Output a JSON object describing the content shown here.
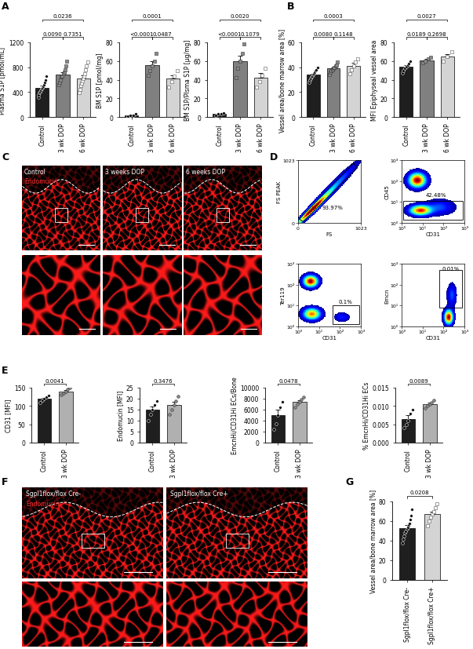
{
  "panel_labels": [
    "A",
    "B",
    "C",
    "D",
    "E",
    "F",
    "G"
  ],
  "chart_data": [
    {
      "type": "bar",
      "ylabel": "Plasma S1P [pmol/mL]",
      "categories": [
        "Control",
        "3 wk DOP",
        "6 wk DOP"
      ],
      "values": [
        470,
        680,
        620
      ],
      "errors": [
        30,
        40,
        50
      ],
      "points": [
        [
          310,
          360,
          390,
          410,
          430,
          450,
          470,
          490,
          520,
          560,
          600,
          660
        ],
        [
          520,
          560,
          600,
          640,
          660,
          700,
          720,
          760,
          820,
          900
        ],
        [
          390,
          440,
          500,
          540,
          580,
          620,
          660,
          700,
          760,
          820,
          880
        ]
      ],
      "colors": [
        "#1f1f1f",
        "#808080",
        "#d4d4d4"
      ],
      "markers": [
        "circle",
        "square",
        "open_square"
      ],
      "ylim": [
        0,
        1200
      ],
      "yticks": [
        0,
        400,
        800,
        1200
      ],
      "annotations": [
        {
          "between": [
            0,
            2
          ],
          "text": "0.0236"
        },
        {
          "between": [
            0,
            1
          ],
          "text": "0.0090"
        },
        {
          "between": [
            1,
            2
          ],
          "text": "0.7351"
        }
      ]
    },
    {
      "type": "bar",
      "ylabel": "BM S1P [pmol/mg]",
      "categories": [
        "Control",
        "3 wk DOP",
        "6 wk DOP"
      ],
      "values": [
        2,
        56,
        41
      ],
      "errors": [
        0.3,
        4,
        4
      ],
      "points": [
        [
          1,
          2,
          2,
          3
        ],
        [
          45,
          50,
          55,
          60,
          68
        ],
        [
          32,
          38,
          44,
          50
        ]
      ],
      "colors": [
        "#1f1f1f",
        "#808080",
        "#d4d4d4"
      ],
      "markers": [
        "circle",
        "square",
        "open_square"
      ],
      "ylim": [
        0,
        80
      ],
      "yticks": [
        0,
        20,
        40,
        60,
        80
      ],
      "annotations": [
        {
          "between": [
            0,
            2
          ],
          "text": "0.0001"
        },
        {
          "between": [
            0,
            1
          ],
          "text": "<0.0001"
        },
        {
          "between": [
            1,
            2
          ],
          "text": "0.0487"
        }
      ]
    },
    {
      "type": "bar",
      "ylabel": "BM S1P/Plsma S1P [µg/mg]",
      "categories": [
        "Control",
        "3 wk DOP",
        "6 wk DOP"
      ],
      "values": [
        3,
        60,
        42
      ],
      "errors": [
        0.4,
        6,
        5
      ],
      "points": [
        [
          2,
          3,
          3,
          4
        ],
        [
          42,
          52,
          60,
          68,
          78
        ],
        [
          32,
          38,
          45,
          52
        ]
      ],
      "colors": [
        "#1f1f1f",
        "#808080",
        "#d4d4d4"
      ],
      "markers": [
        "circle",
        "square",
        "open_square"
      ],
      "ylim": [
        0,
        80
      ],
      "yticks": [
        0,
        20,
        40,
        60,
        80
      ],
      "annotations": [
        {
          "between": [
            0,
            2
          ],
          "text": "0.0020"
        },
        {
          "between": [
            0,
            1
          ],
          "text": "<0.0001"
        },
        {
          "between": [
            1,
            2
          ],
          "text": "0.1079"
        }
      ]
    },
    {
      "type": "bar",
      "ylabel": "Vessel area/bone marrow area [%]",
      "categories": [
        "Control",
        "3 wk DOP",
        "6 wk DOP"
      ],
      "values": [
        34,
        39,
        41
      ],
      "errors": [
        1,
        1,
        2.5
      ],
      "points": [
        [
          28,
          30,
          31,
          32,
          33,
          34,
          35,
          36,
          37,
          38,
          40
        ],
        [
          34,
          36,
          37,
          38,
          39,
          40,
          41,
          42,
          44
        ],
        [
          35,
          38,
          41,
          44,
          47
        ]
      ],
      "colors": [
        "#1f1f1f",
        "#808080",
        "#d4d4d4"
      ],
      "markers": [
        "circle",
        "square",
        "open_square"
      ],
      "ylim": [
        0,
        60
      ],
      "yticks": [
        0,
        20,
        40,
        60
      ],
      "annotations": [
        {
          "between": [
            0,
            2
          ],
          "text": "0.0003"
        },
        {
          "between": [
            0,
            1
          ],
          "text": "0.0080"
        },
        {
          "between": [
            1,
            2
          ],
          "text": "0.1148"
        }
      ]
    },
    {
      "type": "bar",
      "ylabel": "MFI Epiphyseal vessel area",
      "categories": [
        "Control",
        "3 wk DOP",
        "6 wk DOP"
      ],
      "values": [
        54,
        61,
        65
      ],
      "errors": [
        1.8,
        1.5,
        2.5
      ],
      "points": [
        [
          47,
          50,
          52,
          54,
          56,
          57,
          60
        ],
        [
          58,
          60,
          62,
          64
        ],
        [
          60,
          65,
          70
        ]
      ],
      "colors": [
        "#1f1f1f",
        "#808080",
        "#d4d4d4"
      ],
      "markers": [
        "circle",
        "square",
        "open_square"
      ],
      "ylim": [
        0,
        80
      ],
      "yticks": [
        0,
        20,
        40,
        60,
        80
      ],
      "annotations": [
        {
          "between": [
            0,
            2
          ],
          "text": "0.0027"
        },
        {
          "between": [
            0,
            1
          ],
          "text": "0.0189"
        },
        {
          "between": [
            1,
            2
          ],
          "text": "0.2698"
        }
      ]
    },
    {
      "type": "bar",
      "ylabel": "CD31 [MFI]",
      "categories": [
        "Control",
        "3 wk DOP"
      ],
      "values": [
        120,
        140
      ],
      "errors": [
        3,
        3.5
      ],
      "points": [
        [
          110,
          115,
          120,
          124,
          128
        ],
        [
          130,
          135,
          140,
          145,
          150
        ]
      ],
      "colors": [
        "#1f1f1f",
        "#b0b0b0"
      ],
      "markers": [
        "circle",
        "circle"
      ],
      "ylim": [
        0,
        150
      ],
      "yticks": [
        0,
        50,
        100,
        150
      ],
      "annotations": [
        {
          "between": [
            0,
            1
          ],
          "text": "0.0041"
        }
      ]
    },
    {
      "type": "bar",
      "ylabel": "Endomucin [MFI]",
      "categories": [
        "Control",
        "3 wk DOP"
      ],
      "values": [
        15,
        17
      ],
      "errors": [
        1.5,
        1.4
      ],
      "points": [
        [
          10,
          13,
          15,
          17,
          19
        ],
        [
          13,
          15,
          17,
          19,
          21
        ]
      ],
      "colors": [
        "#1f1f1f",
        "#b0b0b0"
      ],
      "markers": [
        "circle",
        "circle"
      ],
      "ylim": [
        0,
        25
      ],
      "yticks": [
        0,
        5,
        10,
        15,
        20,
        25
      ],
      "annotations": [
        {
          "between": [
            0,
            1
          ],
          "text": "0.3476"
        }
      ]
    },
    {
      "type": "bar",
      "ylabel": "EmcnHi/CD31Hi ECs/Bone",
      "categories": [
        "Control",
        "3 wk DOP"
      ],
      "values": [
        5000,
        7400
      ],
      "errors": [
        1000,
        350
      ],
      "points": [
        [
          2500,
          3500,
          5000,
          6500,
          7500
        ],
        [
          6500,
          7000,
          7400,
          7800,
          8300
        ]
      ],
      "colors": [
        "#1f1f1f",
        "#b0b0b0"
      ],
      "markers": [
        "circle",
        "circle"
      ],
      "ylim": [
        0,
        10000
      ],
      "yticks": [
        0,
        2000,
        4000,
        6000,
        8000,
        10000
      ],
      "annotations": [
        {
          "between": [
            0,
            1
          ],
          "text": "0.0478"
        }
      ]
    },
    {
      "type": "bar",
      "ylabel": "% EmcnHi/CD31Hi ECs",
      "categories": [
        "Control",
        "3 wk DOP"
      ],
      "values": [
        0.0065,
        0.0105
      ],
      "errors": [
        0.0009,
        0.0004
      ],
      "points": [
        [
          0.004,
          0.005,
          0.006,
          0.008,
          0.009
        ],
        [
          0.0095,
          0.01,
          0.0105,
          0.011,
          0.0115
        ]
      ],
      "colors": [
        "#1f1f1f",
        "#b0b0b0"
      ],
      "markers": [
        "circle",
        "circle"
      ],
      "ylim": [
        0,
        0.015
      ],
      "yticks": [
        {
          "value": 0,
          "label": "0.000"
        },
        0.005,
        {
          "value": 0.01,
          "label": "0.010"
        },
        0.015
      ],
      "annotations": [
        {
          "between": [
            0,
            1
          ],
          "text": "0.0089"
        }
      ]
    },
    {
      "type": "bar",
      "ylabel": "Vessel area/bone marrow area [%]",
      "categories": [
        "Sgpl1flox/flox Cre-",
        "Sgpl1flox/flox Cre+"
      ],
      "values": [
        53,
        67
      ],
      "errors": [
        3,
        3
      ],
      "points": [
        [
          38,
          42,
          45,
          48,
          50,
          52,
          54,
          56,
          58,
          62,
          66,
          72
        ],
        [
          55,
          60,
          64,
          67,
          70,
          74,
          78
        ]
      ],
      "colors": [
        "#1f1f1f",
        "#d4d4d4"
      ],
      "markers": [
        "circle",
        "open_square"
      ],
      "ylim": [
        0,
        80
      ],
      "yticks": [
        0,
        20,
        40,
        60,
        80
      ],
      "annotations": [
        {
          "between": [
            0,
            1
          ],
          "text": "0.0208"
        }
      ]
    }
  ],
  "images": [
    {
      "columns": [
        {
          "label": "Control",
          "stain": "Endomucin"
        },
        {
          "label": "3 weeks DOP"
        },
        {
          "label": "6 weeks DOP"
        }
      ]
    },
    {
      "columns": [
        {
          "label": "Sgpl1flox/flox Cre-",
          "stain": "Endomucin"
        },
        {
          "label": "Sgpl1flox/flox Cre+"
        }
      ]
    }
  ],
  "flow_cytometry": [
    {
      "xlabel": "FS",
      "ylabel": "FS PEAK",
      "xlim": [
        0,
        1023
      ],
      "ylim": [
        0,
        1023
      ],
      "xticks": [
        0,
        1023
      ],
      "yticks": [
        0,
        1023
      ],
      "gate_label": "93.97%"
    },
    {
      "xlabel": "CD31",
      "ylabel": "CD45",
      "log": true,
      "xlim": [
        1,
        1000
      ],
      "ylim": [
        1,
        1000
      ],
      "xticks": [
        {
          "value": 1,
          "label": "10⁰"
        },
        {
          "value": 10,
          "label": "10¹"
        },
        {
          "value": 100,
          "label": "10²"
        },
        {
          "value": 1000,
          "label": "10³"
        }
      ],
      "yticks": [
        {
          "value": 1,
          "label": "10⁰"
        },
        {
          "value": 10,
          "label": "10¹"
        },
        {
          "value": 100,
          "label": "10²"
        },
        {
          "value": 1000,
          "label": "10³"
        }
      ],
      "gate_label": "42.48%"
    },
    {
      "xlabel": "CD31",
      "ylabel": "Ter119",
      "log": true,
      "xlim": [
        1,
        1000
      ],
      "ylim": [
        1,
        1000
      ],
      "xticks": [
        {
          "value": 1,
          "label": "10⁰"
        },
        {
          "value": 10,
          "label": "10¹"
        },
        {
          "value": 100,
          "label": "10²"
        },
        {
          "value": 1000,
          "label": "10³"
        }
      ],
      "yticks": [
        {
          "value": 1,
          "label": "10⁰"
        },
        {
          "value": 10,
          "label": "10¹"
        },
        {
          "value": 100,
          "label": "10²"
        },
        {
          "value": 1000,
          "label": "10³"
        }
      ],
      "gate_label": "0.1%"
    },
    {
      "xlabel": "CD31",
      "ylabel": "Emcn",
      "log": true,
      "xlim": [
        1,
        1000
      ],
      "ylim": [
        1,
        1000
      ],
      "xticks": [
        {
          "value": 1,
          "label": "10⁰"
        },
        {
          "value": 10,
          "label": "10¹"
        },
        {
          "value": 100,
          "label": "10²"
        },
        {
          "value": 1000,
          "label": "10³"
        }
      ],
      "yticks": [
        {
          "value": 1,
          "label": "10⁰"
        },
        {
          "value": 10,
          "label": "10¹"
        },
        {
          "value": 100,
          "label": "10²"
        },
        {
          "value": 1000,
          "label": "10³"
        }
      ],
      "gate_label": "0.01%"
    }
  ]
}
